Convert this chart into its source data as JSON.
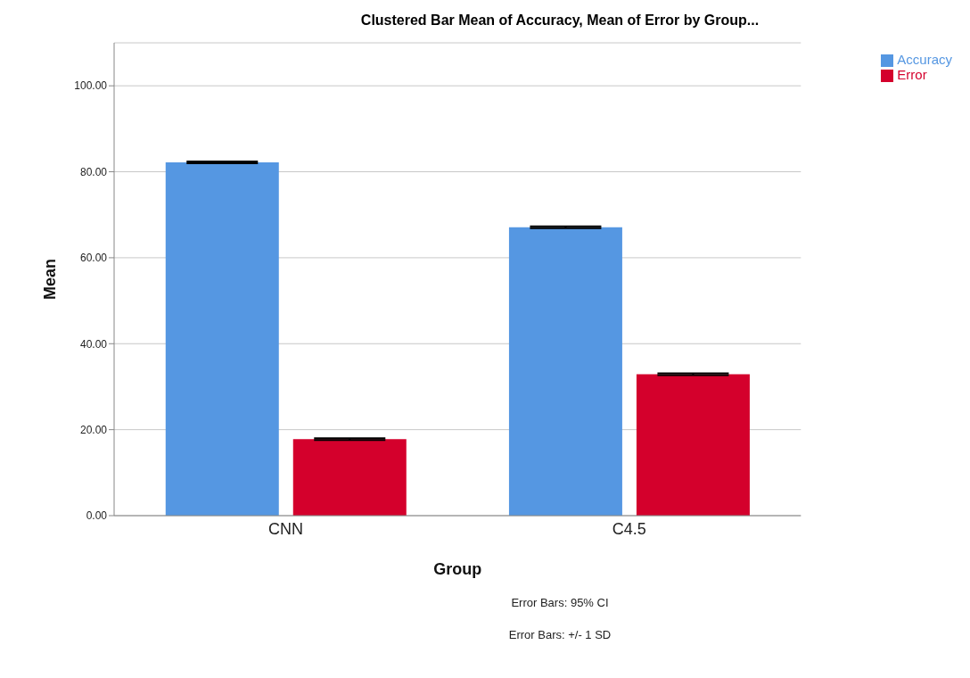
{
  "chart_data": {
    "type": "bar",
    "title": "Clustered Bar Mean of Accuracy, Mean of Error by Group...",
    "xlabel": "Group",
    "ylabel": "Mean",
    "categories": [
      "CNN",
      "C4.5"
    ],
    "series": [
      {
        "name": "Accuracy",
        "color": "#5597e2",
        "values": [
          82.2,
          67.1
        ],
        "errors": [
          0.2,
          0.2
        ]
      },
      {
        "name": "Error",
        "color": "#d4002c",
        "values": [
          17.8,
          32.9
        ],
        "errors": [
          0.2,
          0.2
        ]
      }
    ],
    "ylim": [
      0,
      110
    ],
    "yticks": [
      {
        "value": 0,
        "label": "0.00"
      },
      {
        "value": 20,
        "label": "20.00"
      },
      {
        "value": 40,
        "label": "40.00"
      },
      {
        "value": 60,
        "label": "60.00"
      },
      {
        "value": 80,
        "label": "80.00"
      },
      {
        "value": 100,
        "label": "100.00"
      }
    ],
    "grid": "y",
    "legend": "top right",
    "annotations": [
      "Error Bars: 95% CI",
      "Error Bars: +/- 1 SD"
    ]
  }
}
